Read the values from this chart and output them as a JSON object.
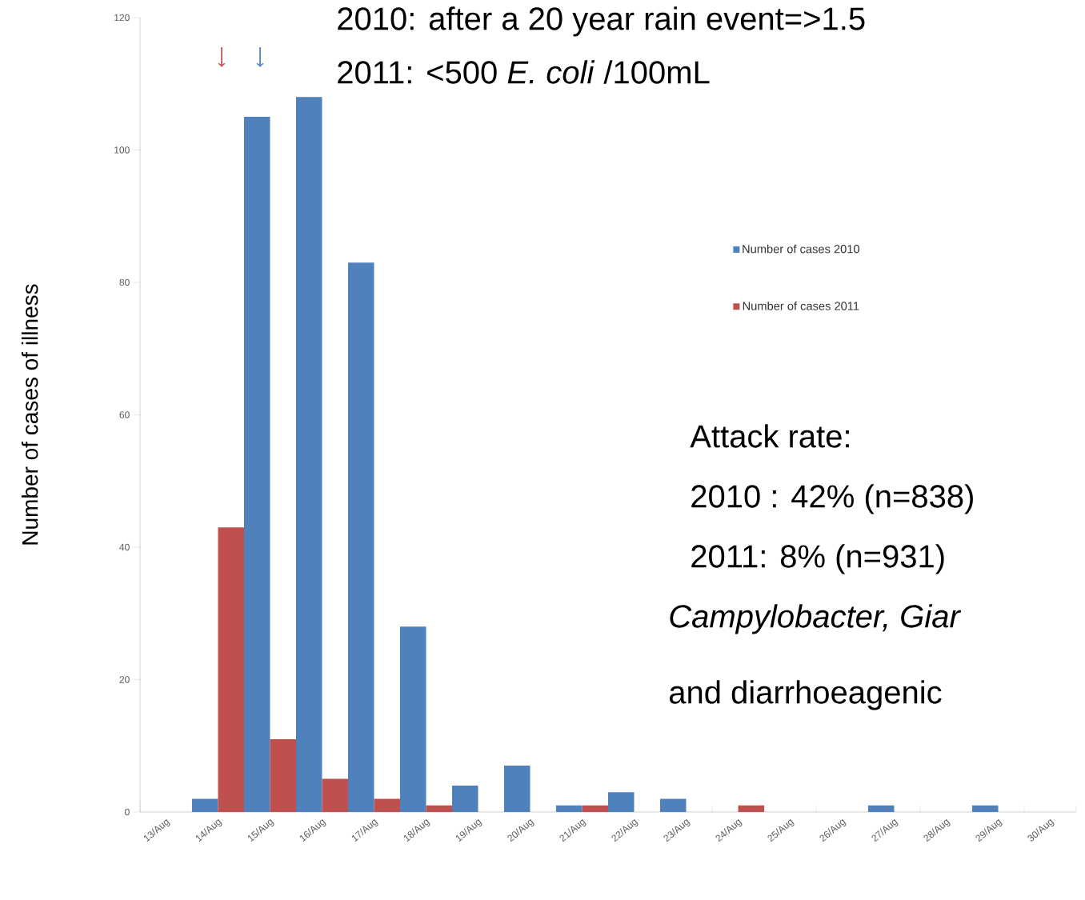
{
  "chart_data": {
    "type": "bar",
    "ylabel": "Number of cases of illness",
    "categories": [
      "13/Aug",
      "14/Aug",
      "15/Aug",
      "16/Aug",
      "17/Aug",
      "18/Aug",
      "19/Aug",
      "20/Aug",
      "21/Aug",
      "22/Aug",
      "23/Aug",
      "24/Aug",
      "25/Aug",
      "26/Aug",
      "27/Aug",
      "28/Aug",
      "29/Aug",
      "30/Aug"
    ],
    "series": [
      {
        "name": "Number of cases 2010",
        "color": "#4f81bd",
        "values": [
          0,
          2,
          105,
          108,
          83,
          28,
          4,
          7,
          1,
          3,
          2,
          0,
          0,
          0,
          1,
          0,
          1,
          0
        ]
      },
      {
        "name": "Number of cases 2011",
        "color": "#c0504d",
        "values": [
          0,
          43,
          11,
          5,
          2,
          1,
          0,
          0,
          1,
          0,
          0,
          1,
          0,
          0,
          0,
          0,
          0,
          0
        ]
      }
    ],
    "ylim": [
      0,
      120
    ],
    "yticks": [
      0,
      20,
      40,
      60,
      80,
      100,
      120
    ],
    "legend": "right",
    "annotations": [
      "2010: after a 20 year rain event=>1.5",
      "2011: <500 *E. coli* /100mL",
      "Attack rate:",
      "2010 : 42% (n=838)",
      "2011:  8% (n=931)",
      "Campylobacter, Giar",
      "and diarrhoeagenic"
    ]
  }
}
